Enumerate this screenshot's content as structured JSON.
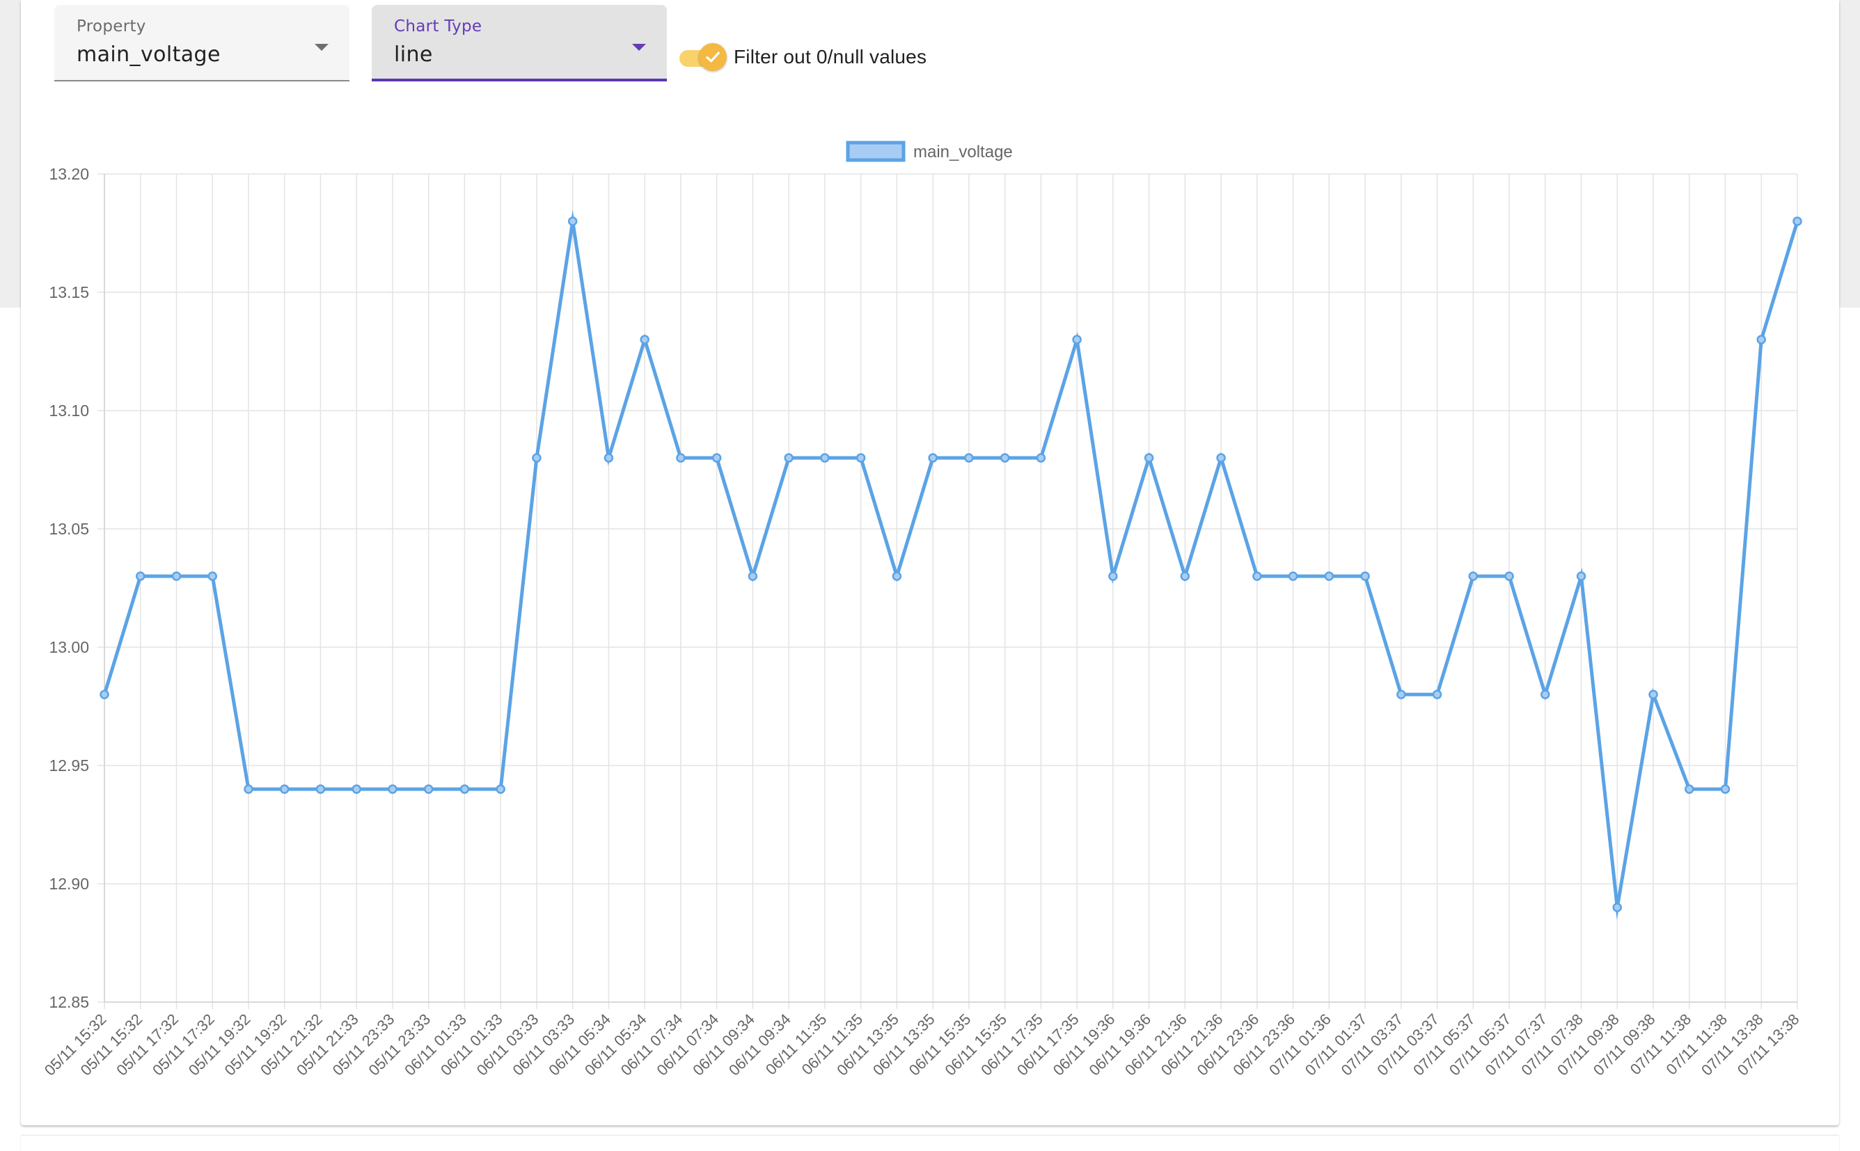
{
  "controls": {
    "property": {
      "label": "Property",
      "value": "main_voltage"
    },
    "chart_type": {
      "label": "Chart Type",
      "value": "line"
    },
    "filter_toggle": {
      "label": "Filter out 0/null values",
      "checked": true,
      "icon": "check-icon"
    }
  },
  "colors": {
    "series_line": "#5ba3e6",
    "legend_fill": "#a9cdf2",
    "accent_purple": "#673ab7",
    "toggle_yellow": "#f4b942"
  },
  "chart_data": {
    "type": "line",
    "title": "",
    "xlabel": "",
    "ylabel": "",
    "ylim": [
      12.85,
      13.2
    ],
    "yticks": [
      "13.20",
      "13.15",
      "13.10",
      "13.05",
      "13.00",
      "12.95",
      "12.90",
      "12.85"
    ],
    "grid": true,
    "legend_position": "top-center",
    "categories": [
      "05/11 15:32",
      "05/11 15:32",
      "05/11 17:32",
      "05/11 17:32",
      "05/11 19:32",
      "05/11 19:32",
      "05/11 21:32",
      "05/11 21:33",
      "05/11 23:33",
      "05/11 23:33",
      "06/11 01:33",
      "06/11 01:33",
      "06/11 03:33",
      "06/11 03:33",
      "06/11 05:34",
      "06/11 05:34",
      "06/11 07:34",
      "06/11 07:34",
      "06/11 09:34",
      "06/11 09:34",
      "06/11 11:35",
      "06/11 11:35",
      "06/11 13:35",
      "06/11 13:35",
      "06/11 15:35",
      "06/11 15:35",
      "06/11 17:35",
      "06/11 17:35",
      "06/11 19:36",
      "06/11 19:36",
      "06/11 21:36",
      "06/11 21:36",
      "06/11 23:36",
      "06/11 23:36",
      "07/11 01:36",
      "07/11 01:37",
      "07/11 03:37",
      "07/11 03:37",
      "07/11 05:37",
      "07/11 05:37",
      "07/11 07:37",
      "07/11 07:38",
      "07/11 09:38",
      "07/11 09:38",
      "07/11 11:38",
      "07/11 11:38",
      "07/11 13:38",
      "07/11 13:38"
    ],
    "series": [
      {
        "name": "main_voltage",
        "values": [
          12.98,
          13.03,
          13.03,
          13.03,
          12.94,
          12.94,
          12.94,
          12.94,
          12.94,
          12.94,
          12.94,
          12.94,
          13.08,
          13.18,
          13.08,
          13.13,
          13.08,
          13.08,
          13.03,
          13.08,
          13.08,
          13.08,
          13.03,
          13.08,
          13.08,
          13.08,
          13.08,
          13.13,
          13.03,
          13.08,
          13.03,
          13.08,
          13.03,
          13.03,
          13.03,
          13.03,
          12.98,
          12.98,
          13.03,
          13.03,
          12.98,
          13.03,
          12.89,
          12.98,
          12.94,
          12.94,
          13.13,
          13.18
        ]
      }
    ]
  }
}
